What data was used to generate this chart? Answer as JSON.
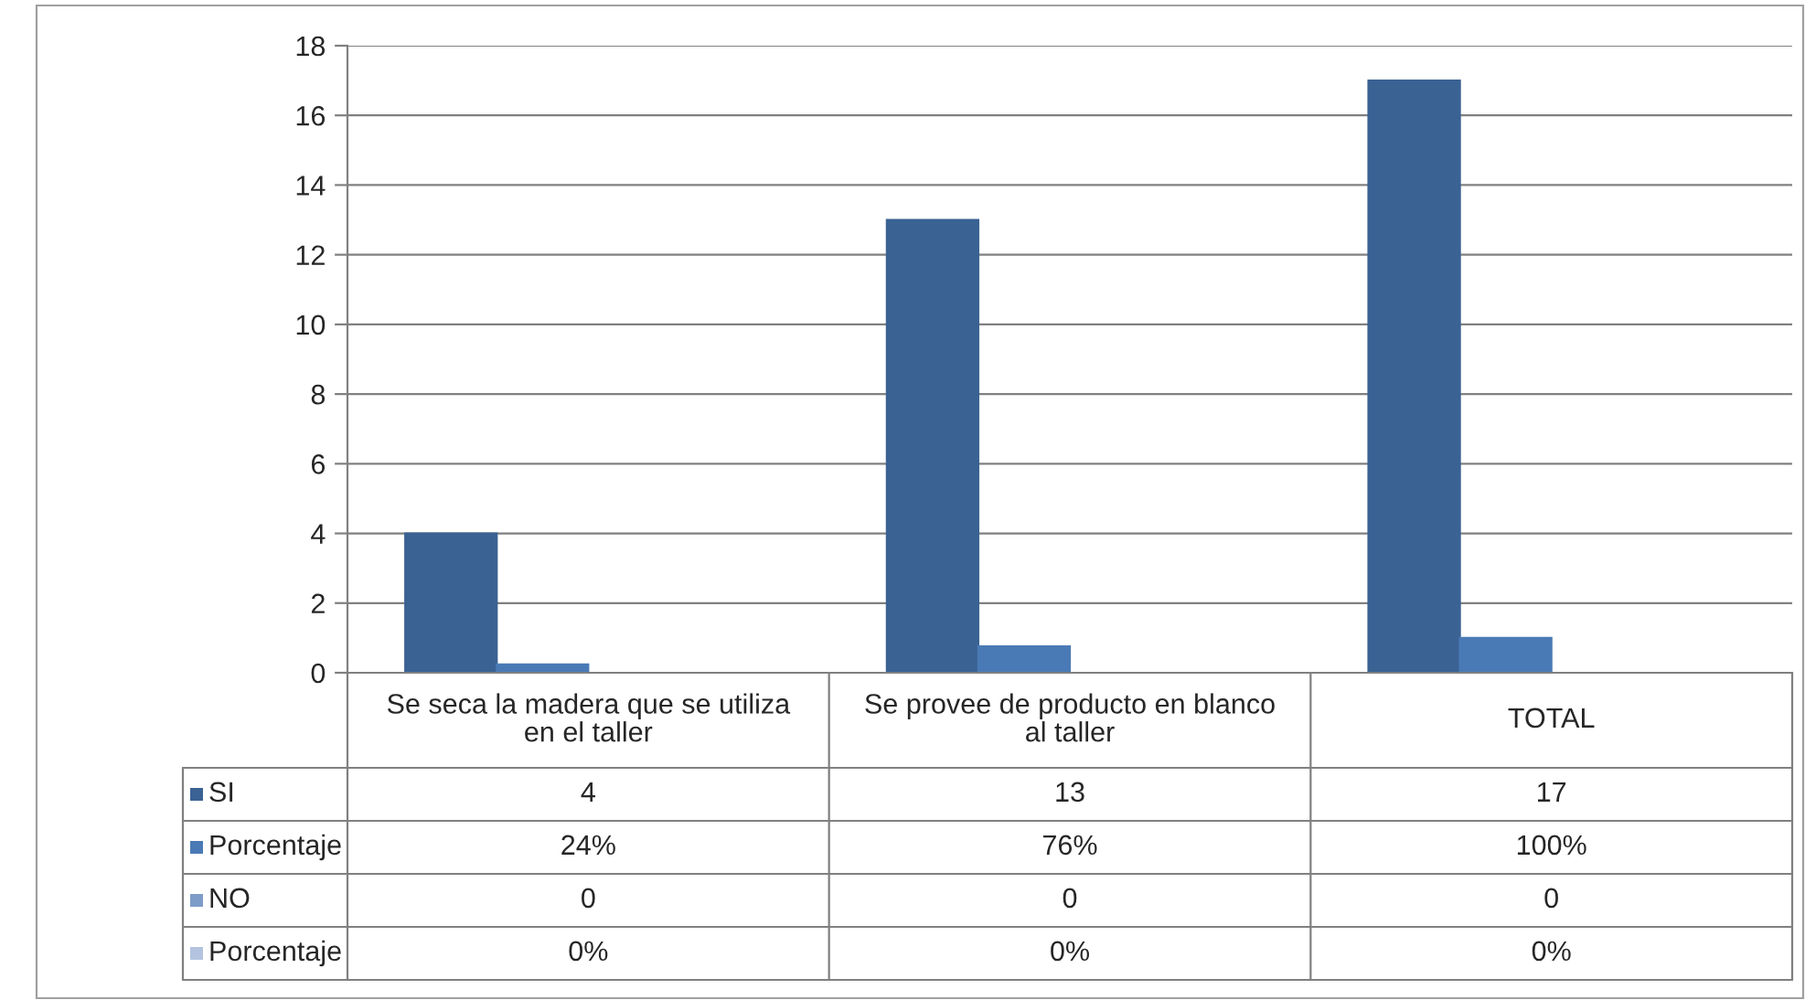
{
  "chart_data": {
    "type": "bar",
    "categories": [
      "Se seca la madera que se utiliza en el taller",
      "Se provee de producto en blanco al taller",
      "TOTAL"
    ],
    "series": [
      {
        "name": "SI",
        "color": "#3a6293",
        "values": [
          4,
          13,
          17
        ],
        "value_labels": [
          "4",
          "13",
          "17"
        ]
      },
      {
        "name": "Porcentaje",
        "color": "#4a7ab5",
        "values": [
          0.24,
          0.76,
          1
        ],
        "value_labels": [
          "24%",
          "76%",
          "100%"
        ]
      },
      {
        "name": "NO",
        "color": "#7d9cc8",
        "values": [
          0,
          0,
          0
        ],
        "value_labels": [
          "0",
          "0",
          "0"
        ]
      },
      {
        "name": "Porcentaje",
        "color": "#b4c4e0",
        "values": [
          0,
          0,
          0
        ],
        "value_labels": [
          "0%",
          "0%",
          "0%"
        ]
      }
    ],
    "ylim": [
      0,
      18
    ],
    "yticks": [
      0,
      2,
      4,
      6,
      8,
      10,
      12,
      14,
      16,
      18
    ],
    "grid": "y",
    "legend": "bottom"
  }
}
